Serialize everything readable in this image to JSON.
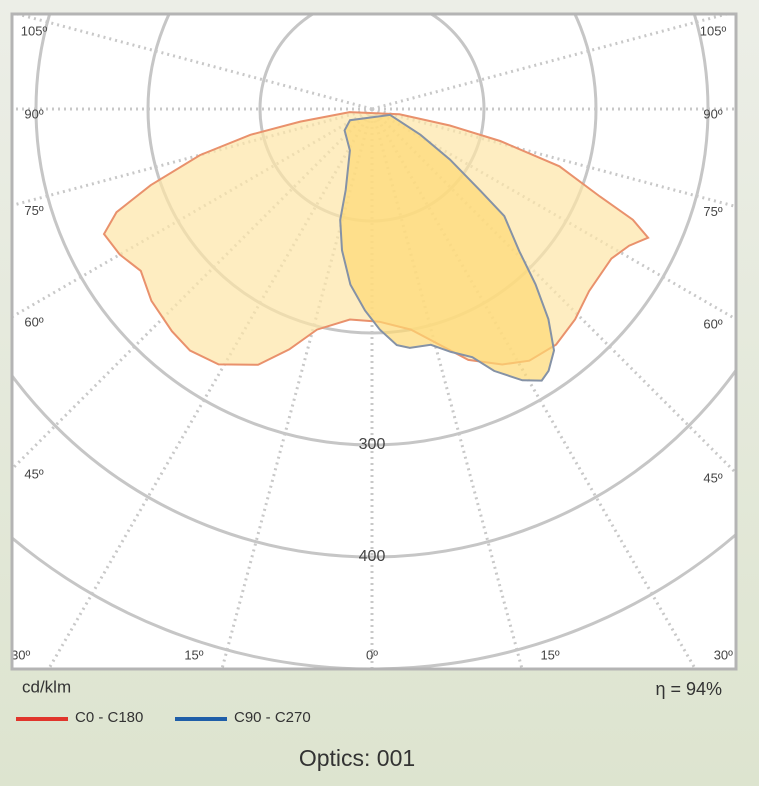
{
  "chart_data": {
    "type": "polar",
    "title": "Optics: 001",
    "unit": "cd/klm",
    "note": "η = 94%",
    "rlim": [
      0,
      500
    ],
    "rgrid": [
      100,
      200,
      300,
      400,
      500
    ],
    "rticks": [
      300,
      400
    ],
    "angle_ticks": [
      {
        "value": -105,
        "label": "105º"
      },
      {
        "value": -90,
        "label": "90º"
      },
      {
        "value": -75,
        "label": "75º"
      },
      {
        "value": -60,
        "label": "60º"
      },
      {
        "value": -45,
        "label": "45º"
      },
      {
        "value": -30,
        "label": "30º"
      },
      {
        "value": -15,
        "label": "15º"
      },
      {
        "value": 0,
        "label": "0º"
      },
      {
        "value": 15,
        "label": "15º"
      },
      {
        "value": 30,
        "label": "30º"
      },
      {
        "value": 45,
        "label": "45º"
      },
      {
        "value": 60,
        "label": "60º"
      },
      {
        "value": 75,
        "label": "75º"
      },
      {
        "value": 90,
        "label": "90º"
      },
      {
        "value": 105,
        "label": "105º"
      }
    ],
    "series": [
      {
        "name": "C0 - C180",
        "color": "#e0352b",
        "stroke": "#e9916c",
        "fill": "#fde6a6",
        "x": [
          -82,
          -80,
          -78,
          -75,
          -71,
          -68,
          -65,
          -60,
          -55,
          -49,
          -42,
          -37,
          -31,
          -24,
          -19,
          -14,
          -6,
          2,
          10,
          16,
          21,
          27,
          32,
          38,
          44,
          50,
          58,
          62,
          65,
          67,
          69,
          73,
          76,
          78,
          79
        ],
        "values": [
          20,
          65,
          111,
          159,
          209,
          246,
          264,
          260,
          252,
          261,
          267,
          270,
          266,
          250,
          227,
          203,
          189,
          190,
          200,
          219,
          240,
          256,
          265,
          267,
          261,
          253,
          252,
          260,
          272,
          253,
          218,
          175,
          118,
          71,
          25
        ]
      },
      {
        "name": "C90 - C270",
        "color": "#1f5ea8",
        "stroke": "#8592a6",
        "fill": "#fdd873",
        "x": [
          72,
          62,
          57,
          53,
          51,
          46,
          43,
          40,
          37,
          34,
          32,
          29,
          25,
          22,
          18,
          14,
          9,
          6,
          2,
          -2,
          -7,
          -12,
          -16,
          -18,
          -28,
          -52,
          -63
        ],
        "values": [
          17,
          49,
          83,
          121,
          152,
          183,
          214,
          245,
          270,
          282,
          286,
          277,
          258,
          239,
          228,
          217,
          216,
          212,
          197,
          180,
          158,
          129,
          103,
          76,
          42,
          31,
          22
        ]
      }
    ]
  }
}
